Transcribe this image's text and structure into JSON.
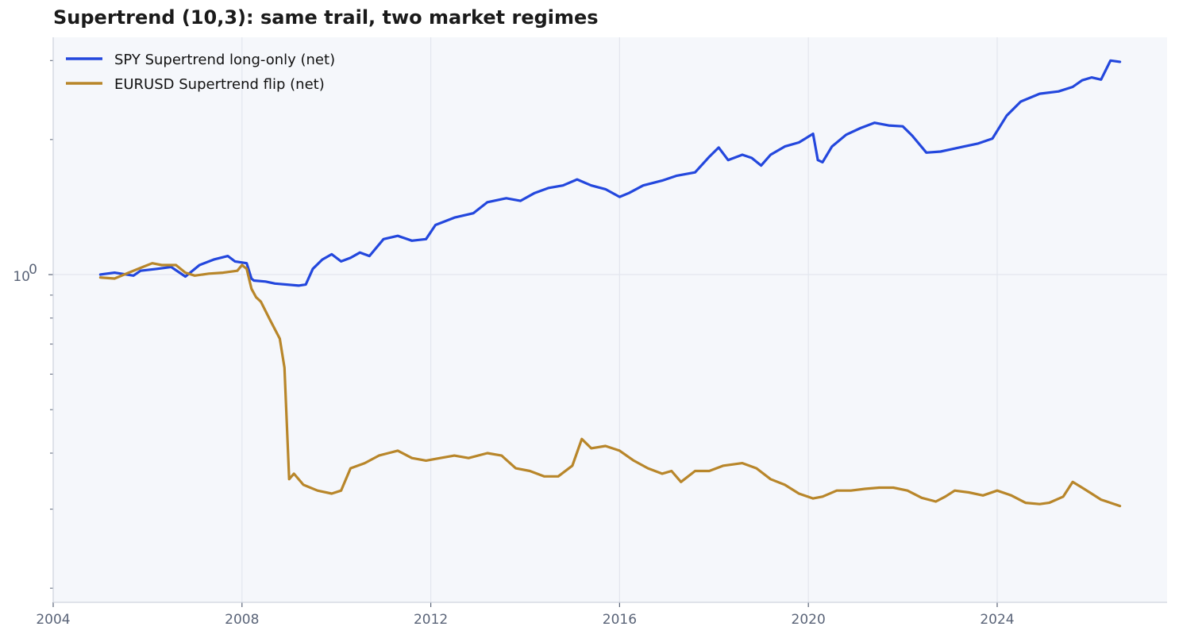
{
  "chart_data": {
    "type": "line",
    "title": "Supertrend (10,3): same trail, two market regimes",
    "xlabel": "",
    "ylabel": "",
    "x_scale": "time",
    "y_scale": "log",
    "xlim": [
      2004.0,
      2027.6
    ],
    "ylim": [
      0.186,
      3.38
    ],
    "x_ticks": [
      2004,
      2008,
      2012,
      2016,
      2020,
      2024
    ],
    "x_tick_labels": [
      "2004",
      "2008",
      "2012",
      "2016",
      "2020",
      "2024"
    ],
    "y_major_ticks": [
      1.0
    ],
    "y_tick_base": "10",
    "y_tick_exp": "0",
    "y_minor_ticks": [
      0.2,
      0.3,
      0.4,
      0.5,
      0.6,
      0.7,
      0.8,
      0.9,
      2.0,
      3.0
    ],
    "grid": true,
    "legend_position": "top-left",
    "series": [
      {
        "name": "SPY Supertrend long-only (net)",
        "color": "#2347dd",
        "points": [
          [
            2005.0,
            1.0
          ],
          [
            2005.3,
            1.01
          ],
          [
            2005.7,
            0.995
          ],
          [
            2005.85,
            1.02
          ],
          [
            2006.2,
            1.03
          ],
          [
            2006.5,
            1.04
          ],
          [
            2006.8,
            0.99
          ],
          [
            2007.1,
            1.05
          ],
          [
            2007.4,
            1.08
          ],
          [
            2007.7,
            1.1
          ],
          [
            2007.85,
            1.07
          ],
          [
            2008.1,
            1.06
          ],
          [
            2008.2,
            0.98
          ],
          [
            2008.25,
            0.97
          ],
          [
            2008.5,
            0.965
          ],
          [
            2008.7,
            0.955
          ],
          [
            2009.2,
            0.945
          ],
          [
            2009.35,
            0.95
          ],
          [
            2009.5,
            1.03
          ],
          [
            2009.7,
            1.08
          ],
          [
            2009.9,
            1.11
          ],
          [
            2010.1,
            1.07
          ],
          [
            2010.3,
            1.09
          ],
          [
            2010.5,
            1.12
          ],
          [
            2010.7,
            1.1
          ],
          [
            2011.0,
            1.2
          ],
          [
            2011.3,
            1.22
          ],
          [
            2011.6,
            1.19
          ],
          [
            2011.9,
            1.2
          ],
          [
            2012.1,
            1.29
          ],
          [
            2012.5,
            1.34
          ],
          [
            2012.9,
            1.37
          ],
          [
            2013.2,
            1.45
          ],
          [
            2013.6,
            1.48
          ],
          [
            2013.9,
            1.46
          ],
          [
            2014.2,
            1.52
          ],
          [
            2014.5,
            1.56
          ],
          [
            2014.8,
            1.58
          ],
          [
            2015.1,
            1.63
          ],
          [
            2015.4,
            1.58
          ],
          [
            2015.7,
            1.55
          ],
          [
            2016.0,
            1.49
          ],
          [
            2016.2,
            1.52
          ],
          [
            2016.5,
            1.58
          ],
          [
            2016.9,
            1.62
          ],
          [
            2017.2,
            1.66
          ],
          [
            2017.6,
            1.69
          ],
          [
            2017.9,
            1.83
          ],
          [
            2018.1,
            1.92
          ],
          [
            2018.3,
            1.8
          ],
          [
            2018.6,
            1.85
          ],
          [
            2018.8,
            1.82
          ],
          [
            2019.0,
            1.75
          ],
          [
            2019.2,
            1.85
          ],
          [
            2019.5,
            1.93
          ],
          [
            2019.8,
            1.97
          ],
          [
            2020.1,
            2.06
          ],
          [
            2020.2,
            1.8
          ],
          [
            2020.3,
            1.78
          ],
          [
            2020.5,
            1.93
          ],
          [
            2020.8,
            2.05
          ],
          [
            2021.1,
            2.12
          ],
          [
            2021.4,
            2.18
          ],
          [
            2021.7,
            2.15
          ],
          [
            2022.0,
            2.14
          ],
          [
            2022.2,
            2.04
          ],
          [
            2022.5,
            1.87
          ],
          [
            2022.8,
            1.88
          ],
          [
            2023.0,
            1.9
          ],
          [
            2023.3,
            1.93
          ],
          [
            2023.6,
            1.96
          ],
          [
            2023.9,
            2.01
          ],
          [
            2024.2,
            2.26
          ],
          [
            2024.5,
            2.43
          ],
          [
            2024.9,
            2.53
          ],
          [
            2025.3,
            2.56
          ],
          [
            2025.6,
            2.62
          ],
          [
            2025.8,
            2.71
          ],
          [
            2026.0,
            2.75
          ],
          [
            2026.2,
            2.72
          ],
          [
            2026.4,
            3.0
          ],
          [
            2026.6,
            2.98
          ]
        ]
      },
      {
        "name": "EURUSD Supertrend flip (net)",
        "color": "#b8862a",
        "points": [
          [
            2005.0,
            0.985
          ],
          [
            2005.3,
            0.98
          ],
          [
            2005.6,
            1.01
          ],
          [
            2005.9,
            1.04
          ],
          [
            2006.1,
            1.06
          ],
          [
            2006.3,
            1.05
          ],
          [
            2006.6,
            1.05
          ],
          [
            2006.8,
            1.01
          ],
          [
            2007.0,
            0.995
          ],
          [
            2007.3,
            1.005
          ],
          [
            2007.6,
            1.01
          ],
          [
            2007.9,
            1.02
          ],
          [
            2008.0,
            1.05
          ],
          [
            2008.1,
            1.03
          ],
          [
            2008.2,
            0.93
          ],
          [
            2008.3,
            0.89
          ],
          [
            2008.4,
            0.87
          ],
          [
            2008.6,
            0.79
          ],
          [
            2008.8,
            0.72
          ],
          [
            2008.9,
            0.62
          ],
          [
            2009.0,
            0.35
          ],
          [
            2009.1,
            0.36
          ],
          [
            2009.3,
            0.34
          ],
          [
            2009.6,
            0.33
          ],
          [
            2009.9,
            0.325
          ],
          [
            2010.1,
            0.33
          ],
          [
            2010.3,
            0.37
          ],
          [
            2010.6,
            0.38
          ],
          [
            2010.9,
            0.395
          ],
          [
            2011.1,
            0.4
          ],
          [
            2011.3,
            0.405
          ],
          [
            2011.6,
            0.39
          ],
          [
            2011.9,
            0.385
          ],
          [
            2012.2,
            0.39
          ],
          [
            2012.5,
            0.395
          ],
          [
            2012.8,
            0.39
          ],
          [
            2013.2,
            0.4
          ],
          [
            2013.5,
            0.395
          ],
          [
            2013.8,
            0.37
          ],
          [
            2014.1,
            0.365
          ],
          [
            2014.4,
            0.355
          ],
          [
            2014.7,
            0.355
          ],
          [
            2015.0,
            0.375
          ],
          [
            2015.2,
            0.43
          ],
          [
            2015.4,
            0.41
          ],
          [
            2015.7,
            0.415
          ],
          [
            2016.0,
            0.405
          ],
          [
            2016.3,
            0.385
          ],
          [
            2016.6,
            0.37
          ],
          [
            2016.9,
            0.36
          ],
          [
            2017.1,
            0.365
          ],
          [
            2017.3,
            0.345
          ],
          [
            2017.6,
            0.365
          ],
          [
            2017.9,
            0.365
          ],
          [
            2018.2,
            0.375
          ],
          [
            2018.6,
            0.38
          ],
          [
            2018.9,
            0.37
          ],
          [
            2019.2,
            0.35
          ],
          [
            2019.5,
            0.34
          ],
          [
            2019.8,
            0.325
          ],
          [
            2020.1,
            0.317
          ],
          [
            2020.3,
            0.32
          ],
          [
            2020.6,
            0.33
          ],
          [
            2020.9,
            0.33
          ],
          [
            2021.2,
            0.333
          ],
          [
            2021.5,
            0.335
          ],
          [
            2021.8,
            0.335
          ],
          [
            2022.1,
            0.33
          ],
          [
            2022.4,
            0.318
          ],
          [
            2022.7,
            0.312
          ],
          [
            2022.9,
            0.32
          ],
          [
            2023.1,
            0.33
          ],
          [
            2023.4,
            0.327
          ],
          [
            2023.7,
            0.322
          ],
          [
            2024.0,
            0.33
          ],
          [
            2024.3,
            0.322
          ],
          [
            2024.6,
            0.31
          ],
          [
            2024.9,
            0.308
          ],
          [
            2025.1,
            0.31
          ],
          [
            2025.4,
            0.32
          ],
          [
            2025.6,
            0.345
          ],
          [
            2025.8,
            0.335
          ],
          [
            2026.0,
            0.325
          ],
          [
            2026.2,
            0.315
          ],
          [
            2026.4,
            0.31
          ],
          [
            2026.6,
            0.305
          ]
        ]
      }
    ]
  }
}
